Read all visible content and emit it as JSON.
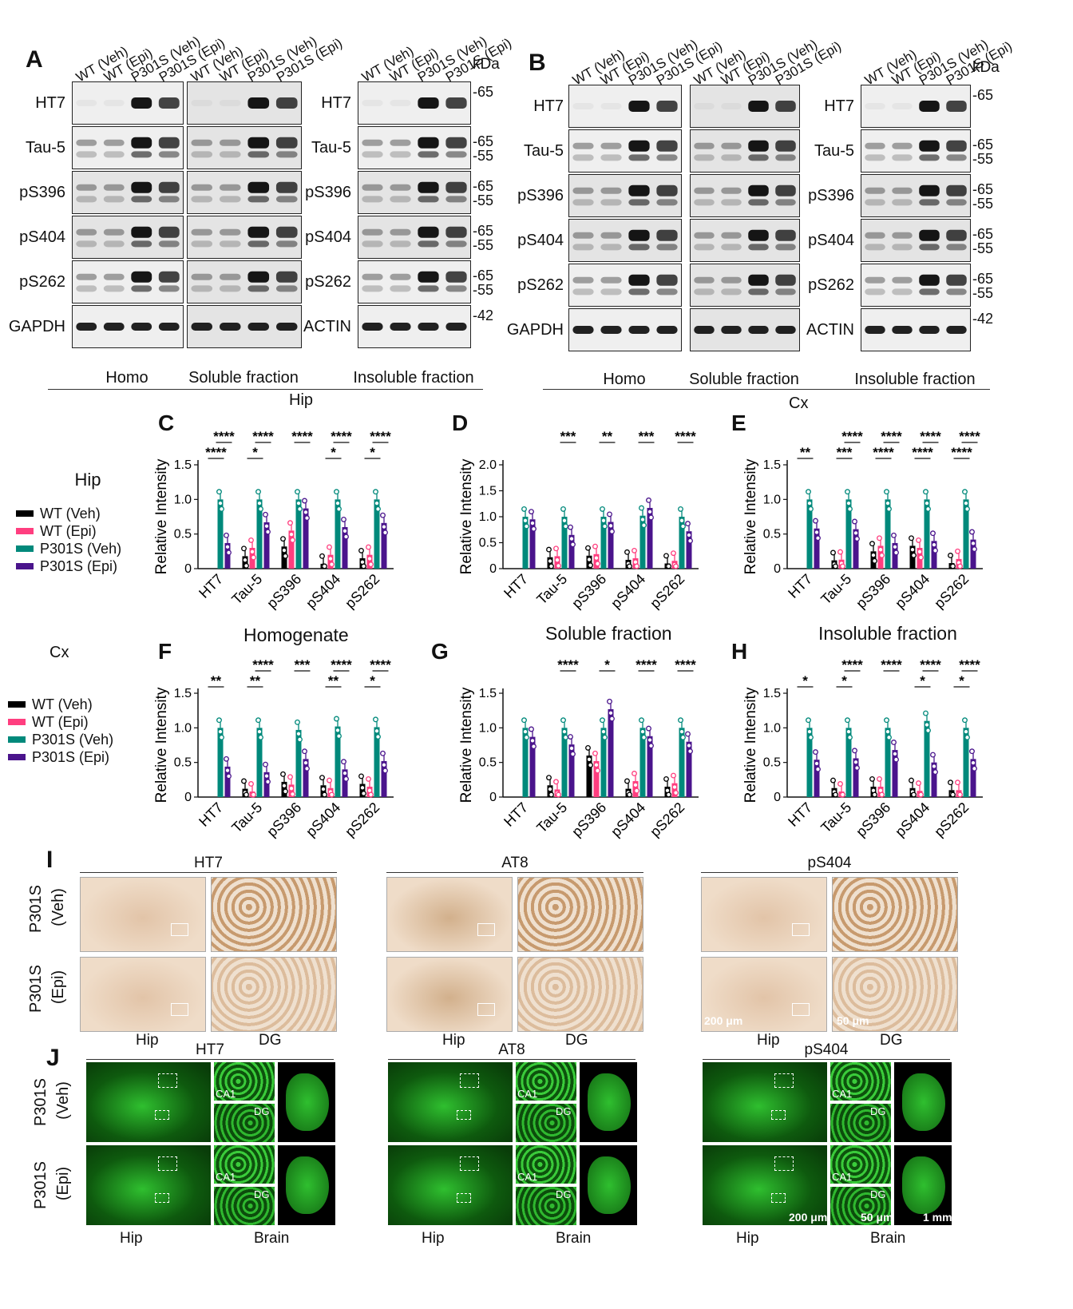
{
  "panel_letters": [
    "A",
    "B",
    "C",
    "D",
    "E",
    "F",
    "G",
    "H",
    "I",
    "J"
  ],
  "lanes": [
    "WT (Veh)",
    "WT (Epi)",
    "P301S (Veh)",
    "P301S (Epi)"
  ],
  "kda_header": "kDa",
  "blot_rows_A_left": [
    "HT7",
    "Tau-5",
    "pS396",
    "pS404",
    "pS262",
    "GAPDH"
  ],
  "blot_rows_A_right": [
    "HT7",
    "Tau-5",
    "pS396",
    "pS404",
    "pS262",
    "ACTIN"
  ],
  "kda_marks": [
    "-65",
    "-65\n-55",
    "-65\n-55",
    "-65\n-55",
    "-65\n-55",
    "-42"
  ],
  "fractions": [
    "Homo",
    "Soluble fraction",
    "Insoluble fraction"
  ],
  "region_A": "Hip",
  "region_B": "Cx",
  "legend_hip_title": "Hip",
  "legend_cx_title": "Cx",
  "legend": [
    {
      "label": "WT (Veh)",
      "color": "#000000"
    },
    {
      "label": "WT (Epi)",
      "color": "#ff3e7f"
    },
    {
      "label": "P301S (Veh)",
      "color": "#00897b"
    },
    {
      "label": "P301S (Epi)",
      "color": "#4a148c"
    }
  ],
  "section_titles": {
    "homogenate": "Homogenate",
    "soluble": "Soluble fraction",
    "insoluble": "Insoluble fraction"
  },
  "ylabel": "Relative Intensity",
  "ihc": {
    "stains": [
      "HT7",
      "AT8",
      "pS404"
    ],
    "rows": [
      [
        "P301S",
        "(Veh)"
      ],
      [
        "P301S",
        "(Epi)"
      ]
    ],
    "cols": [
      "Hip",
      "DG"
    ],
    "scalebars": [
      "200 μm",
      "50 μm"
    ]
  },
  "ifl": {
    "stains": [
      "HT7",
      "AT8",
      "pS404"
    ],
    "rows": [
      [
        "P301S",
        "(Veh)"
      ],
      [
        "P301S",
        "(Epi)"
      ]
    ],
    "cols": [
      "Hip",
      "Brain"
    ],
    "insets": [
      "CA1",
      "DG"
    ],
    "scalebars": [
      "200 μm",
      "50 μm",
      "1 mm"
    ]
  },
  "chart_data": [
    {
      "panel": "C",
      "type": "bar",
      "categories": [
        "HT7",
        "Tau-5",
        "pS396",
        "pS404",
        "pS262"
      ],
      "ylim": [
        0,
        1.5
      ],
      "yticks": [
        0,
        0.5,
        1.0,
        1.5
      ],
      "series": [
        {
          "name": "WT (Veh)",
          "values": [
            0,
            0.18,
            0.32,
            0.07,
            0.15
          ]
        },
        {
          "name": "WT (Epi)",
          "values": [
            0,
            0.3,
            0.55,
            0.2,
            0.2
          ]
        },
        {
          "name": "P301S (Veh)",
          "values": [
            1.0,
            1.0,
            1.0,
            1.0,
            1.0
          ]
        },
        {
          "name": "P301S (Epi)",
          "values": [
            0.37,
            0.67,
            0.87,
            0.6,
            0.66
          ]
        }
      ],
      "sig_top": [
        "****",
        "****",
        "****",
        "****",
        "****"
      ],
      "sig_inner": [
        "****",
        "*",
        "",
        "*",
        "*"
      ]
    },
    {
      "panel": "D",
      "type": "bar",
      "categories": [
        "HT7",
        "Tau-5",
        "pS396",
        "pS404",
        "pS262"
      ],
      "ylim": [
        0,
        2.0
      ],
      "yticks": [
        0,
        0.5,
        1.0,
        1.5,
        2.0
      ],
      "series": [
        {
          "name": "WT (Veh)",
          "values": [
            0,
            0.22,
            0.25,
            0.17,
            0.1
          ]
        },
        {
          "name": "WT (Epi)",
          "values": [
            0,
            0.24,
            0.28,
            0.2,
            0.15
          ]
        },
        {
          "name": "P301S (Veh)",
          "values": [
            1.0,
            1.0,
            1.0,
            1.02,
            1.0
          ]
        },
        {
          "name": "P301S (Epi)",
          "values": [
            0.95,
            0.65,
            0.9,
            1.17,
            0.72
          ]
        }
      ],
      "sig_top": [
        "",
        "***",
        "**",
        "***",
        "****"
      ],
      "sig_inner": [
        "",
        "",
        "",
        "",
        ""
      ]
    },
    {
      "panel": "E",
      "type": "bar",
      "categories": [
        "HT7",
        "Tau-5",
        "pS396",
        "pS404",
        "pS262"
      ],
      "ylim": [
        0,
        1.5
      ],
      "yticks": [
        0,
        0.5,
        1.0,
        1.5
      ],
      "series": [
        {
          "name": "WT (Veh)",
          "values": [
            0,
            0.12,
            0.25,
            0.33,
            0.08
          ]
        },
        {
          "name": "WT (Epi)",
          "values": [
            0,
            0.13,
            0.33,
            0.3,
            0.14
          ]
        },
        {
          "name": "P301S (Veh)",
          "values": [
            1.0,
            1.0,
            1.0,
            1.0,
            1.0
          ]
        },
        {
          "name": "P301S (Epi)",
          "values": [
            0.58,
            0.57,
            0.37,
            0.4,
            0.42
          ]
        }
      ],
      "sig_top": [
        "",
        "****",
        "****",
        "****",
        "****"
      ],
      "sig_inner": [
        "**",
        "***",
        "****",
        "****",
        "****"
      ]
    },
    {
      "panel": "F",
      "type": "bar",
      "categories": [
        "HT7",
        "Tau-5",
        "pS396",
        "pS404",
        "pS262"
      ],
      "ylim": [
        0,
        1.5
      ],
      "yticks": [
        0,
        0.5,
        1.0,
        1.5
      ],
      "series": [
        {
          "name": "WT (Veh)",
          "values": [
            0,
            0.12,
            0.22,
            0.17,
            0.19
          ]
        },
        {
          "name": "WT (Epi)",
          "values": [
            0,
            0.08,
            0.18,
            0.13,
            0.15
          ]
        },
        {
          "name": "P301S (Veh)",
          "values": [
            1.0,
            1.0,
            0.97,
            1.02,
            1.01
          ]
        },
        {
          "name": "P301S (Epi)",
          "values": [
            0.44,
            0.36,
            0.55,
            0.4,
            0.52
          ]
        }
      ],
      "sig_top": [
        "",
        "****",
        "***",
        "****",
        "****"
      ],
      "sig_inner": [
        "**",
        "**",
        "",
        "**",
        "*"
      ]
    },
    {
      "panel": "G",
      "type": "bar",
      "categories": [
        "HT7",
        "Tau-5",
        "pS396",
        "pS404",
        "pS262"
      ],
      "ylim": [
        0,
        1.5
      ],
      "yticks": [
        0,
        0.5,
        1.0,
        1.5
      ],
      "series": [
        {
          "name": "WT (Veh)",
          "values": [
            0,
            0.17,
            0.6,
            0.12,
            0.15
          ]
        },
        {
          "name": "WT (Epi)",
          "values": [
            0,
            0.11,
            0.52,
            0.23,
            0.2
          ]
        },
        {
          "name": "P301S (Veh)",
          "values": [
            1.0,
            1.0,
            1.0,
            1.0,
            1.0
          ]
        },
        {
          "name": "P301S (Epi)",
          "values": [
            0.87,
            0.76,
            1.27,
            0.88,
            0.8
          ]
        }
      ],
      "sig_top": [
        "",
        "****",
        "*",
        "****",
        "****"
      ],
      "sig_inner": [
        "",
        "",
        "",
        "",
        ""
      ]
    },
    {
      "panel": "H",
      "type": "bar",
      "categories": [
        "HT7",
        "Tau-5",
        "pS396",
        "pS404",
        "pS262"
      ],
      "ylim": [
        0,
        1.5
      ],
      "yticks": [
        0,
        0.5,
        1.0,
        1.5
      ],
      "series": [
        {
          "name": "WT (Veh)",
          "values": [
            0,
            0.13,
            0.15,
            0.13,
            0.1
          ]
        },
        {
          "name": "WT (Epi)",
          "values": [
            0,
            0.08,
            0.15,
            0.09,
            0.1
          ]
        },
        {
          "name": "P301S (Veh)",
          "values": [
            1.0,
            1.0,
            1.0,
            1.1,
            1.0
          ]
        },
        {
          "name": "P301S (Epi)",
          "values": [
            0.54,
            0.56,
            0.68,
            0.5,
            0.55
          ]
        }
      ],
      "sig_top": [
        "",
        "****",
        "****",
        "****",
        "****"
      ],
      "sig_inner": [
        "*",
        "*",
        "",
        "*",
        "*"
      ]
    }
  ]
}
